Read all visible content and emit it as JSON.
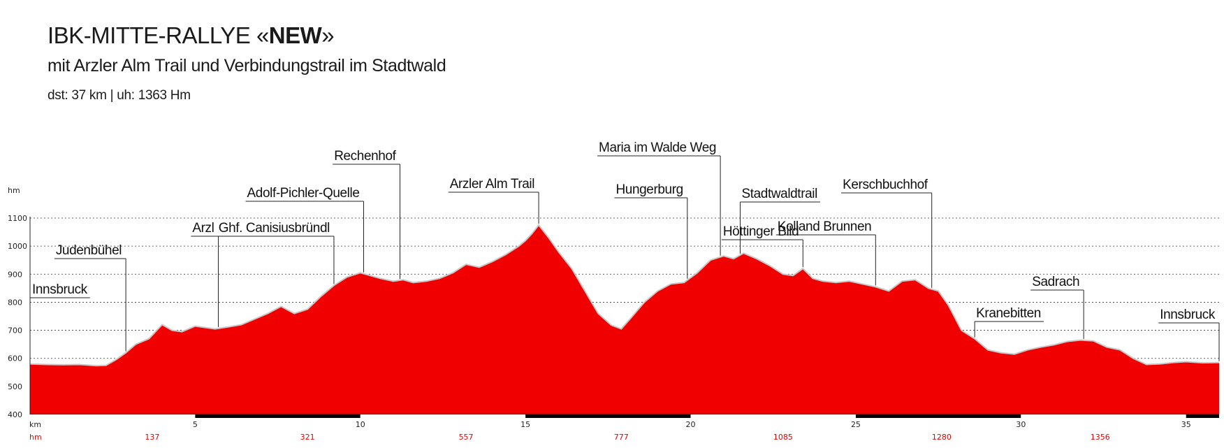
{
  "header": {
    "title_prefix": "IBK-MITTE-RALLYE «",
    "title_bold": "NEW",
    "title_suffix": "»",
    "subtitle": "mit Arzler Alm Trail und Verbindungstrail im Stadtwald",
    "stats": "dst: 37 km | uh: 1363 Hm"
  },
  "colors": {
    "fill": "#f00000",
    "outline": "#c8c8c8",
    "grid": "#333333"
  },
  "chart_data": {
    "type": "area",
    "ylabel": "hm",
    "xlabel": "km",
    "ylim": [
      400,
      1100
    ],
    "xlim": [
      0,
      36
    ],
    "y_ticks": [
      400,
      500,
      600,
      700,
      800,
      900,
      1000,
      1100
    ],
    "x_ticks": [
      5,
      10,
      15,
      20,
      25,
      30,
      35
    ],
    "grid": "dashed horizontal",
    "bottom_row_label": "hm",
    "bottom_row": [
      {
        "x": 3.7,
        "value": "137"
      },
      {
        "x": 8.4,
        "value": "321"
      },
      {
        "x": 13.2,
        "value": "557"
      },
      {
        "x": 17.9,
        "value": "777"
      },
      {
        "x": 22.8,
        "value": "1085"
      },
      {
        "x": 27.6,
        "value": "1280"
      },
      {
        "x": 32.4,
        "value": "1356"
      }
    ],
    "series": [
      {
        "x": [
          0,
          0.5,
          1,
          1.5,
          2,
          2.3,
          2.6,
          2.9,
          3.2,
          3.6,
          4,
          4.3,
          4.6,
          5,
          5.3,
          5.6,
          6,
          6.4,
          6.8,
          7.2,
          7.6,
          8,
          8.4,
          8.8,
          9.2,
          9.6,
          10,
          10.3,
          10.6,
          11,
          11.3,
          11.6,
          12,
          12.4,
          12.8,
          13.2,
          13.6,
          14,
          14.4,
          14.8,
          15,
          15.2,
          15.4,
          15.7,
          16,
          16.4,
          16.8,
          17.2,
          17.6,
          17.9,
          18.2,
          18.6,
          19,
          19.4,
          19.8,
          20.2,
          20.6,
          21,
          21.3,
          21.6,
          22,
          22.4,
          22.8,
          23.1,
          23.4,
          23.7,
          24,
          24.4,
          24.8,
          25.2,
          25.6,
          26,
          26.4,
          26.8,
          27,
          27.2,
          27.5,
          27.8,
          28.2,
          28.6,
          29,
          29.4,
          29.8,
          30.2,
          30.6,
          31,
          31.4,
          31.8,
          32.2,
          32.6,
          33,
          33.4,
          33.8,
          34.2,
          34.6,
          35,
          35.5,
          36
        ],
        "y": [
          580,
          578,
          577,
          578,
          574,
          575,
          595,
          620,
          650,
          670,
          720,
          700,
          695,
          715,
          710,
          705,
          712,
          720,
          740,
          760,
          785,
          760,
          775,
          820,
          860,
          890,
          905,
          895,
          885,
          875,
          880,
          870,
          875,
          885,
          905,
          935,
          925,
          945,
          970,
          1000,
          1020,
          1045,
          1075,
          1030,
          980,
          920,
          840,
          760,
          718,
          705,
          745,
          800,
          840,
          865,
          870,
          905,
          950,
          965,
          955,
          975,
          955,
          930,
          900,
          895,
          920,
          885,
          875,
          870,
          875,
          865,
          855,
          840,
          875,
          880,
          865,
          850,
          840,
          790,
          700,
          670,
          630,
          620,
          615,
          630,
          640,
          648,
          660,
          665,
          662,
          640,
          630,
          600,
          578,
          580,
          585,
          588,
          584,
          585
        ]
      }
    ]
  },
  "annotations": [
    {
      "text": "Innsbruck",
      "x": 0
    },
    {
      "text": "Judenbühel",
      "x": 2.9
    },
    {
      "text": "Arzl",
      "x": 5.7
    },
    {
      "text": "Ghf. Canisiusbründl",
      "x": 9.2
    },
    {
      "text": "Adolf-Pichler-Quelle",
      "x": 10.1
    },
    {
      "text": "Rechenhof",
      "x": 11.2
    },
    {
      "text": "Arzler Alm Trail",
      "x": 15.4
    },
    {
      "text": "Hungerburg",
      "x": 19.9
    },
    {
      "text": "Maria im Walde Weg",
      "x": 20.9
    },
    {
      "text": "Stadtwaldtrail",
      "x": 21.5
    },
    {
      "text": "Höttinger Bild",
      "x": 23.4
    },
    {
      "text": "Kolland Brunnen",
      "x": 25.6
    },
    {
      "text": "Kerschbuchhof",
      "x": 27.3
    },
    {
      "text": "Kranebitten",
      "x": 28.6
    },
    {
      "text": "Sadrach",
      "x": 31.9
    },
    {
      "text": "Innsbruck",
      "x": 36
    }
  ]
}
